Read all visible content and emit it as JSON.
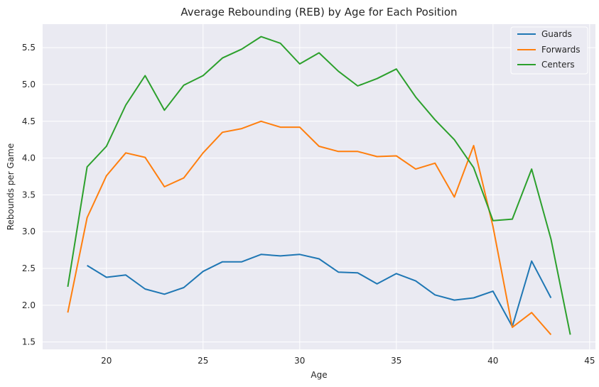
{
  "chart_data": {
    "type": "line",
    "title": "Average Rebounding (REB) by Age for Each Position",
    "xlabel": "Age",
    "ylabel": "Rebounds per Game",
    "xlim": [
      16.7,
      45.3
    ],
    "ylim": [
      1.4,
      5.82
    ],
    "xticks": [
      20,
      25,
      30,
      35,
      40,
      45
    ],
    "yticks": [
      1.5,
      2.0,
      2.5,
      3.0,
      3.5,
      4.0,
      4.5,
      5.0,
      5.5
    ],
    "ytick_format": 1,
    "grid": true,
    "legend_position": "top-right",
    "colors": {
      "background": "#eaeaf2",
      "grid": "#ffffff"
    },
    "series": [
      {
        "name": "Guards",
        "color": "#1f77b4",
        "x": [
          19,
          20,
          21,
          22,
          23,
          24,
          25,
          26,
          27,
          28,
          29,
          30,
          31,
          32,
          33,
          34,
          35,
          36,
          37,
          38,
          39,
          40,
          41,
          42,
          43
        ],
        "y": [
          2.54,
          2.38,
          2.41,
          2.22,
          2.15,
          2.24,
          2.46,
          2.59,
          2.59,
          2.69,
          2.67,
          2.69,
          2.63,
          2.45,
          2.44,
          2.29,
          2.43,
          2.33,
          2.14,
          2.07,
          2.1,
          2.19,
          1.71,
          2.6,
          2.1
        ]
      },
      {
        "name": "Forwards",
        "color": "#ff7f0e",
        "x": [
          18,
          19,
          20,
          21,
          22,
          23,
          24,
          25,
          26,
          27,
          28,
          29,
          30,
          31,
          32,
          33,
          34,
          35,
          36,
          37,
          38,
          39,
          40,
          41,
          42,
          43
        ],
        "y": [
          1.9,
          3.19,
          3.76,
          4.07,
          4.01,
          3.61,
          3.73,
          4.07,
          4.35,
          4.4,
          4.5,
          4.42,
          4.42,
          4.16,
          4.09,
          4.09,
          4.02,
          4.03,
          3.85,
          3.93,
          3.47,
          4.17,
          3.07,
          1.7,
          1.9,
          1.6
        ]
      },
      {
        "name": "Centers",
        "color": "#2ca02c",
        "x": [
          18,
          19,
          20,
          21,
          22,
          23,
          24,
          25,
          26,
          27,
          28,
          29,
          30,
          31,
          32,
          33,
          34,
          35,
          36,
          37,
          38,
          39,
          40,
          41,
          42,
          43,
          44
        ],
        "y": [
          2.25,
          3.88,
          4.16,
          4.72,
          5.12,
          4.65,
          4.99,
          5.12,
          5.36,
          5.48,
          5.65,
          5.56,
          5.28,
          5.43,
          5.18,
          4.98,
          5.08,
          5.21,
          4.83,
          4.52,
          4.25,
          3.87,
          3.15,
          3.17,
          3.85,
          2.9,
          1.6
        ]
      }
    ]
  }
}
